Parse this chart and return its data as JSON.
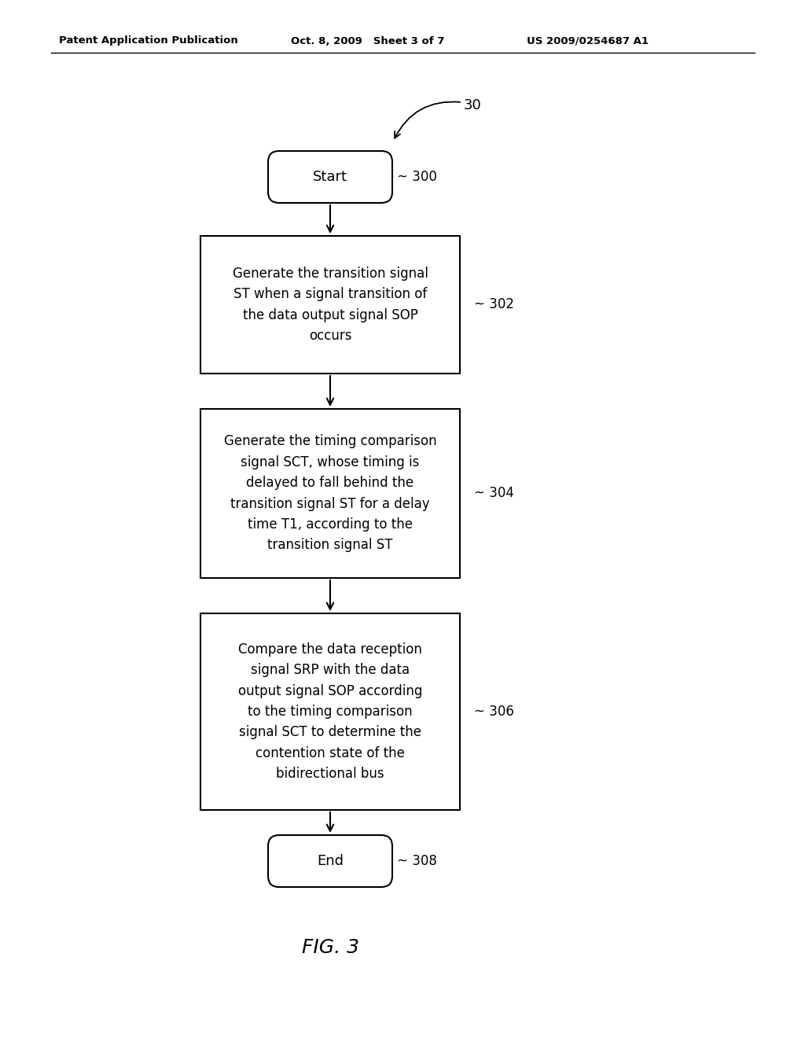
{
  "background_color": "#ffffff",
  "header_left": "Patent Application Publication",
  "header_middle": "Oct. 8, 2009   Sheet 3 of 7",
  "header_right": "US 2009/0254687 A1",
  "figure_label": "30",
  "fig_caption": "FIG. 3",
  "start_label": "Start",
  "start_ref": "300",
  "end_label": "End",
  "end_ref": "308",
  "box302_lines": [
    "Generate the transition signal",
    "ST when a signal transition of",
    "the data output signal SOP",
    "occurs"
  ],
  "box302_ref": "302",
  "box304_lines": [
    "Generate the timing comparison",
    "signal SCT, whose timing is",
    "delayed to fall behind the",
    "transition signal ST for a delay",
    "time T1, according to the",
    "transition signal ST"
  ],
  "box304_ref": "304",
  "box306_lines": [
    "Compare the data reception",
    "signal SRP with the data",
    "output signal SOP according",
    "to the timing comparison",
    "signal SCT to determine the",
    "contention state of the",
    "bidirectional bus"
  ],
  "box306_ref": "306"
}
